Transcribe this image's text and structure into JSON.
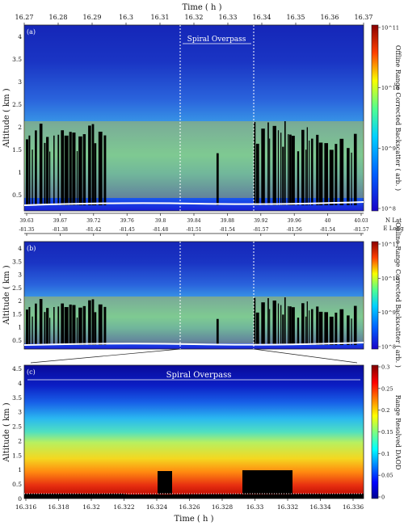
{
  "panels": {
    "a": {
      "label": "(a)",
      "ylabel": "Altitude ( km )",
      "yticks": [
        "0.5",
        "1",
        "1.5",
        "2",
        "2.5",
        "3",
        "3.5",
        "4"
      ],
      "top_axis_label": "Time ( h )",
      "top_ticks": [
        "16.27",
        "16.28",
        "16.29",
        "16.3",
        "16.31",
        "16.32",
        "16.33",
        "16.34",
        "16.35",
        "16.36",
        "16.37"
      ],
      "annotation": "Spiral Overpass",
      "colorbar_label": "Offline Range Corrected Backscatter ( arb. )",
      "colorbar_ticks": [
        "10^11",
        "10^10",
        "10^9",
        "10^8"
      ]
    },
    "nav": {
      "lat_ticks": [
        "39.63",
        "39.67",
        "39.72",
        "39.76",
        "39.8",
        "39.84",
        "39.88",
        "39.92",
        "39.96",
        "40",
        "40.03"
      ],
      "lon_ticks": [
        "-81.35",
        "-81.38",
        "-81.42",
        "-81.45",
        "-81.48",
        "-81.51",
        "-81.54",
        "-81.57",
        "-81.56",
        "-81.54",
        "-81.57"
      ],
      "lat_label": "N Lat",
      "lon_label": "E Long"
    },
    "b": {
      "label": "(b)",
      "ylabel": "Altitude ( km )",
      "yticks": [
        "0.5",
        "1",
        "1.5",
        "2",
        "2.5",
        "3",
        "3.5",
        "4"
      ],
      "colorbar_label": "Online Range Corrected Backscatter ( arb. )",
      "colorbar_ticks": [
        "10^11",
        "10^10",
        "10^9",
        "10^8"
      ]
    },
    "c": {
      "label": "(c)",
      "ylabel": "Altitude ( km )",
      "yticks": [
        "0",
        "0.5",
        "1",
        "1.5",
        "2",
        "2.5",
        "3",
        "3.5",
        "4",
        "4.5"
      ],
      "xlabel": "Time ( h )",
      "xticks": [
        "16.316",
        "16.318",
        "16.32",
        "16.322",
        "16.324",
        "16.326",
        "16.328",
        "16.33",
        "16.332",
        "16.334",
        "16.336"
      ],
      "annotation": "Spiral Overpass",
      "colorbar_label": "Range Resolved DAOD",
      "colorbar_ticks": [
        "0",
        "0.05",
        "0.1",
        "0.15",
        "0.2",
        "0.25",
        "0.3"
      ]
    }
  },
  "chart_data": [
    {
      "type": "heatmap",
      "title": "",
      "xlabel": "Time ( h )",
      "ylabel": "Altitude ( km )",
      "xlim": [
        16.27,
        16.37
      ],
      "ylim": [
        0.2,
        4.5
      ],
      "colorbar": "Offline Range Corrected Backscatter ( arb. )",
      "clim_log10": [
        8,
        11
      ],
      "annotation": {
        "text": "Spiral Overpass",
        "x_range": [
          16.316,
          16.3372
        ]
      }
    },
    {
      "type": "heatmap",
      "title": "",
      "ylabel": "Altitude ( km )",
      "xlim": [
        16.27,
        16.37
      ],
      "ylim": [
        0.2,
        4.5
      ],
      "colorbar": "Online Range Corrected Backscatter ( arb. )",
      "clim_log10": [
        8,
        11
      ]
    },
    {
      "type": "heatmap",
      "title": "",
      "xlabel": "Time ( h )",
      "ylabel": "Altitude ( km )",
      "xlim": [
        16.3155,
        16.3372
      ],
      "ylim": [
        0,
        4.5
      ],
      "colorbar": "Range Resolved DAOD",
      "clim": [
        0,
        0.3
      ],
      "annotation": {
        "text": "Spiral Overpass"
      }
    }
  ]
}
